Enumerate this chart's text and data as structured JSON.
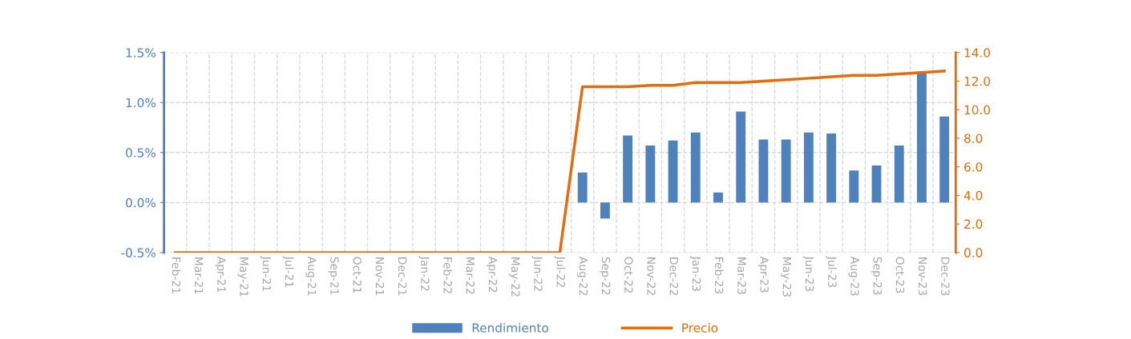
{
  "chart_data": {
    "type": "bar",
    "categories": [
      "Feb-21",
      "Mar-21",
      "Apr-21",
      "May-21",
      "Jun-21",
      "Jul-21",
      "Aug-21",
      "Sep-21",
      "Oct-21",
      "Nov-21",
      "Dec-21",
      "Jan-22",
      "Feb-22",
      "Mar-22",
      "Apr-22",
      "May-22",
      "Jun-22",
      "Jul-22",
      "Aug-22",
      "Sep-22",
      "Oct-22",
      "Nov-22",
      "Dec-22",
      "Jan-23",
      "Feb-23",
      "Mar-23",
      "Apr-23",
      "May-23",
      "Jun-23",
      "Jul-23",
      "Aug-23",
      "Sep-23",
      "Oct-23",
      "Nov-23",
      "Dec-23"
    ],
    "series": [
      {
        "name": "Rendimiento",
        "color": "#4f81bd",
        "values": [
          null,
          null,
          null,
          null,
          null,
          null,
          null,
          null,
          null,
          null,
          null,
          null,
          null,
          null,
          null,
          null,
          null,
          null,
          0.3,
          -0.16,
          0.67,
          0.57,
          0.62,
          0.7,
          0.1,
          0.91,
          0.63,
          0.63,
          0.7,
          0.69,
          0.32,
          0.37,
          0.57,
          1.31,
          0.86
        ]
      },
      {
        "name": "Precio",
        "type": "line",
        "axis": "y2",
        "color": "#e46c0a",
        "values": [
          0,
          0,
          0,
          0,
          0,
          0,
          0,
          0,
          0,
          0,
          0,
          0,
          0,
          0,
          0,
          0,
          0,
          0,
          11.6,
          11.6,
          11.6,
          11.7,
          11.7,
          11.9,
          11.9,
          11.9,
          12.0,
          12.1,
          12.2,
          12.3,
          12.4,
          12.4,
          12.5,
          12.6,
          12.7
        ]
      }
    ],
    "ylim": [
      -0.5,
      1.5
    ],
    "yticks": [
      {
        "value": -0.5,
        "label": "-0.5%"
      },
      {
        "value": 0,
        "label": "0.0%"
      },
      {
        "value": 0.5,
        "label": "0.5%"
      },
      {
        "value": 1.0,
        "label": "1.0%"
      },
      {
        "value": 1.5,
        "label": "1.5%"
      }
    ],
    "y2lim": [
      0,
      14
    ],
    "y2ticks": [
      {
        "value": 0,
        "label": "0.0"
      },
      {
        "value": 2,
        "label": "2.0"
      },
      {
        "value": 4,
        "label": "4.0"
      },
      {
        "value": 6,
        "label": "6.0"
      },
      {
        "value": 8,
        "label": "8.0"
      },
      {
        "value": 10,
        "label": "10.0"
      },
      {
        "value": 12,
        "label": "12.0"
      },
      {
        "value": 14,
        "label": "14.0"
      }
    ],
    "grid": true,
    "legend": "bottom",
    "line_style": "solid",
    "marker": "none"
  }
}
